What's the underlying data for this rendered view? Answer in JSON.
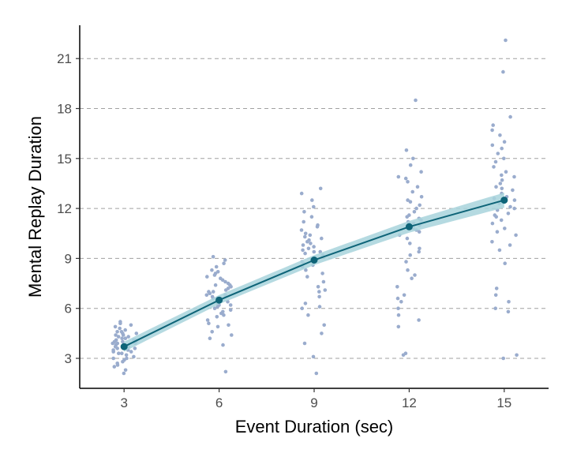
{
  "chart_data": {
    "type": "scatter",
    "title": "",
    "xlabel": "Event Duration (sec)",
    "ylabel": "Mental Replay Duration",
    "x_ticks": [
      3,
      6,
      9,
      12,
      15
    ],
    "y_ticks": [
      3,
      6,
      9,
      12,
      15,
      18,
      21
    ],
    "xlim": [
      1.6,
      16.4
    ],
    "ylim": [
      1.2,
      23.0
    ],
    "grid": "horizontal dashed",
    "legend": "none",
    "colors": {
      "points": "#9aaccd",
      "line": "#0e6478",
      "ribbon": "#a8d4dc"
    },
    "fit": {
      "x": [
        3,
        6,
        9,
        12,
        15
      ],
      "y": [
        3.7,
        6.5,
        8.9,
        10.9,
        12.5
      ],
      "ci_lower": [
        3.4,
        6.25,
        8.6,
        10.55,
        12.05
      ],
      "ci_upper": [
        4.0,
        6.8,
        9.2,
        11.25,
        12.95
      ]
    },
    "jittered_points": [
      {
        "x": 3,
        "y_samples": [
          2.1,
          2.3,
          2.5,
          2.6,
          2.8,
          2.9,
          3.0,
          3.1,
          3.2,
          3.3,
          3.3,
          3.4,
          3.5,
          3.5,
          3.6,
          3.6,
          3.7,
          3.7,
          3.8,
          3.8,
          3.8,
          3.9,
          3.9,
          4.0,
          4.0,
          4.0,
          4.1,
          4.1,
          4.2,
          4.2,
          4.3,
          4.3,
          4.4,
          4.5,
          4.5,
          4.6,
          4.7,
          4.8,
          4.9,
          5.0,
          5.1,
          5.2,
          3.4,
          3.6,
          3.9,
          4.1,
          4.4,
          2.7,
          3.0,
          4.6
        ]
      },
      {
        "x": 6,
        "y_samples": [
          2.2,
          3.8,
          4.2,
          4.6,
          4.9,
          5.1,
          5.3,
          5.5,
          5.6,
          5.8,
          5.9,
          6.0,
          6.1,
          6.2,
          6.3,
          6.4,
          6.5,
          6.6,
          6.6,
          6.7,
          6.8,
          6.9,
          7.0,
          7.1,
          7.2,
          7.3,
          7.4,
          7.5,
          7.6,
          7.7,
          7.8,
          7.9,
          8.0,
          8.1,
          8.3,
          8.5,
          8.7,
          8.9,
          9.1,
          6.2,
          6.8,
          7.4,
          5.7,
          6.4,
          7.0,
          4.4,
          8.2,
          5.0
        ]
      },
      {
        "x": 9,
        "y_samples": [
          2.1,
          3.1,
          3.9,
          4.5,
          5.0,
          5.6,
          6.0,
          6.3,
          6.7,
          7.0,
          7.3,
          7.6,
          7.9,
          8.1,
          8.3,
          8.5,
          8.7,
          8.8,
          9.0,
          9.1,
          9.2,
          9.3,
          9.4,
          9.5,
          9.6,
          9.7,
          9.8,
          9.9,
          10.0,
          10.1,
          10.2,
          10.3,
          10.5,
          10.7,
          10.9,
          11.2,
          11.5,
          11.8,
          12.1,
          12.5,
          12.9,
          13.2,
          8.6,
          9.4,
          10.4,
          7.1,
          6.1,
          11.0
        ]
      },
      {
        "x": 12,
        "y_samples": [
          3.2,
          3.3,
          4.9,
          5.3,
          5.6,
          6.0,
          6.4,
          6.8,
          7.3,
          7.8,
          8.3,
          8.8,
          9.2,
          9.6,
          9.9,
          10.2,
          10.4,
          10.6,
          10.8,
          10.9,
          11.0,
          11.1,
          11.2,
          11.3,
          11.4,
          11.5,
          11.6,
          11.8,
          12.0,
          12.2,
          12.4,
          12.7,
          13.0,
          13.3,
          13.6,
          13.9,
          14.2,
          14.6,
          15.0,
          15.5,
          18.5,
          10.7,
          11.1,
          12.5,
          9.4,
          8.0,
          6.6,
          13.8
        ]
      },
      {
        "x": 15,
        "y_samples": [
          3.0,
          3.2,
          5.8,
          6.0,
          6.4,
          6.8,
          7.2,
          8.7,
          9.5,
          10.0,
          10.4,
          10.8,
          11.1,
          11.3,
          11.5,
          11.7,
          11.9,
          12.1,
          12.3,
          12.5,
          12.7,
          12.9,
          13.1,
          13.3,
          13.5,
          13.7,
          13.9,
          14.2,
          14.5,
          14.8,
          15.0,
          15.3,
          15.6,
          16.0,
          16.4,
          16.7,
          17.0,
          17.5,
          20.2,
          22.1,
          12.0,
          12.6,
          13.2,
          10.6,
          14.0,
          15.8,
          11.6,
          9.8
        ]
      }
    ]
  }
}
